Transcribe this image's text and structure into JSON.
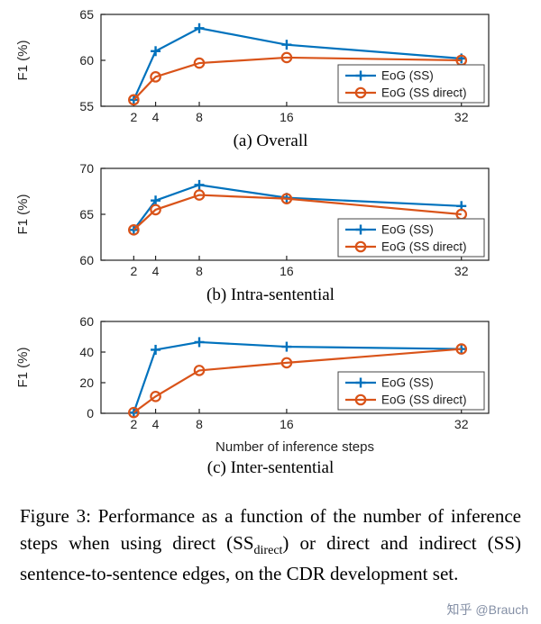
{
  "colors": {
    "series_blue": "#0072BD",
    "series_orange": "#D95319",
    "axis": "#222222",
    "watermark_gray": "#8590a6"
  },
  "chart_data": [
    {
      "type": "line",
      "caption": "(a) Overall",
      "ylabel": "F1 (%)",
      "xlabel": "",
      "x": [
        2,
        4,
        8,
        16,
        32
      ],
      "xlim": [
        -1,
        34.5
      ],
      "ylim": [
        55,
        65
      ],
      "yticks": [
        55,
        60,
        65
      ],
      "grid": false,
      "legend_position": "bottom-right",
      "series": [
        {
          "name": "EoG (SS)",
          "color": "#0072BD",
          "marker": "plus",
          "values": [
            55.7,
            61.0,
            63.5,
            61.7,
            60.2
          ]
        },
        {
          "name": "EoG (SS direct)",
          "color": "#D95319",
          "marker": "circle",
          "values": [
            55.7,
            58.2,
            59.7,
            60.3,
            60.0
          ]
        }
      ]
    },
    {
      "type": "line",
      "caption": "(b) Intra-sentential",
      "ylabel": "F1 (%)",
      "xlabel": "",
      "x": [
        2,
        4,
        8,
        16,
        32
      ],
      "xlim": [
        -1,
        34.5
      ],
      "ylim": [
        60,
        70
      ],
      "yticks": [
        60,
        65,
        70
      ],
      "grid": false,
      "legend_position": "bottom-right",
      "series": [
        {
          "name": "EoG (SS)",
          "color": "#0072BD",
          "marker": "plus",
          "values": [
            63.3,
            66.5,
            68.2,
            66.8,
            65.9
          ]
        },
        {
          "name": "EoG (SS direct)",
          "color": "#D95319",
          "marker": "circle",
          "values": [
            63.3,
            65.5,
            67.1,
            66.7,
            65.0
          ]
        }
      ]
    },
    {
      "type": "line",
      "caption": "(c) Inter-sentential",
      "ylabel": "F1 (%)",
      "xlabel": "Number of inference steps",
      "x": [
        2,
        4,
        8,
        16,
        32
      ],
      "xlim": [
        -1,
        34.5
      ],
      "ylim": [
        0,
        60
      ],
      "yticks": [
        0,
        20,
        40,
        60
      ],
      "grid": false,
      "legend_position": "bottom-right",
      "series": [
        {
          "name": "EoG (SS)",
          "color": "#0072BD",
          "marker": "plus",
          "values": [
            0.5,
            41.5,
            46.5,
            43.5,
            42.0
          ]
        },
        {
          "name": "EoG (SS direct)",
          "color": "#D95319",
          "marker": "circle",
          "values": [
            0.5,
            11.0,
            28.0,
            33.0,
            42.0
          ]
        }
      ]
    }
  ],
  "figure_caption": {
    "part1": "Figure 3: Performance as a function of the number of inference steps when using direct (SS",
    "subscript": "direct",
    "part2": ") or direct and indirect (SS) sentence-to-sentence edges, on the CDR development set."
  },
  "watermark": "知乎 @Brauch"
}
